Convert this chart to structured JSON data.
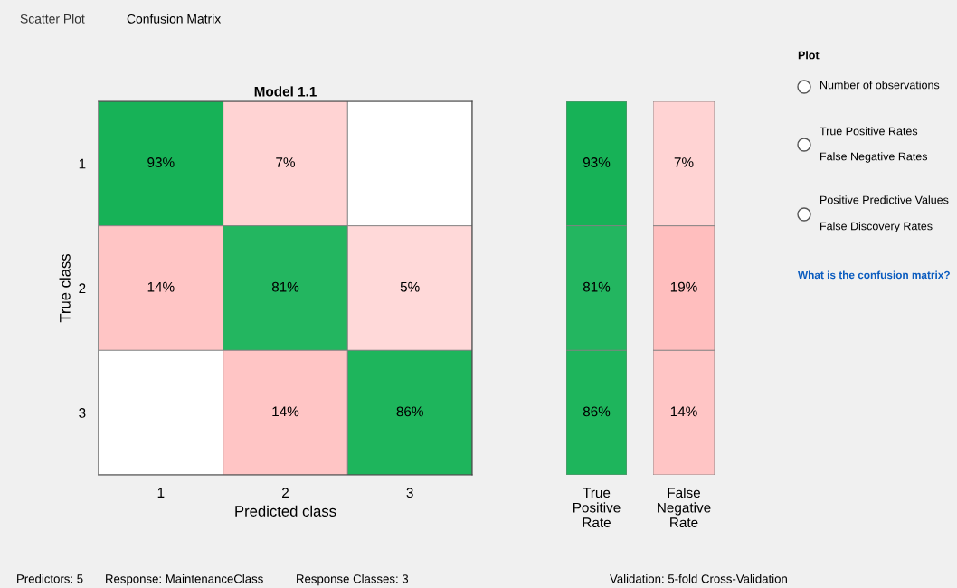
{
  "chart_data": [
    {
      "type": "heatmap",
      "title": "Model 1.1",
      "xlabel": "Predicted class",
      "ylabel": "True class",
      "categories": [
        "1",
        "2",
        "3"
      ],
      "y_categories": [
        "1",
        "2",
        "3"
      ],
      "cells": [
        [
          93,
          7,
          null
        ],
        [
          14,
          81,
          5
        ],
        [
          null,
          14,
          86
        ]
      ],
      "cell_labels": [
        [
          "93%",
          "7%",
          null
        ],
        [
          "14%",
          "81%",
          "5%"
        ],
        [
          null,
          "14%",
          "86%"
        ]
      ],
      "colors": [
        [
          "#10b052",
          "#ff8080",
          "#ffffff"
        ],
        [
          "#ff8080",
          "#10b052",
          "#ff8080"
        ],
        [
          "#ffffff",
          "#ff8080",
          "#10b052"
        ]
      ]
    },
    {
      "type": "heatmap",
      "categories": [
        "True\nPositive\nRate"
      ],
      "y_categories": [
        "1",
        "2",
        "3"
      ],
      "tick_labels": "x",
      "cells": [
        [
          93
        ],
        [
          81
        ],
        [
          86
        ]
      ],
      "cell_labels": [
        [
          "93%"
        ],
        [
          "81%"
        ],
        [
          "86%"
        ]
      ],
      "colors": [
        [
          "#10b052"
        ],
        [
          "#10b052"
        ],
        [
          "#10b052"
        ]
      ]
    },
    {
      "type": "heatmap",
      "categories": [
        "False\nNegative\nRate"
      ],
      "y_categories": [
        "1",
        "2",
        "3"
      ],
      "tick_labels": "x",
      "cells": [
        [
          7
        ],
        [
          19
        ],
        [
          14
        ]
      ],
      "cell_labels": [
        [
          "7%"
        ],
        [
          "19%"
        ],
        [
          "14%"
        ]
      ],
      "colors": [
        [
          "#ff8080"
        ],
        [
          "#ff8080"
        ],
        [
          "#ff8080"
        ]
      ]
    },
    {
      "type": "other",
      "annotations": [
        "Scatter Plot",
        "Confusion Matrix",
        "Plot",
        "Number of observations",
        "True Positive Rates",
        "False Negative Rates",
        "Positive Predictive Values",
        "False Discovery Rates",
        "What is the confusion matrix?",
        "Predictors: 5",
        "Response: MaintenanceClass",
        "Response Classes: 3",
        "Validation: 5-fold Cross-Validation"
      ]
    }
  ]
}
